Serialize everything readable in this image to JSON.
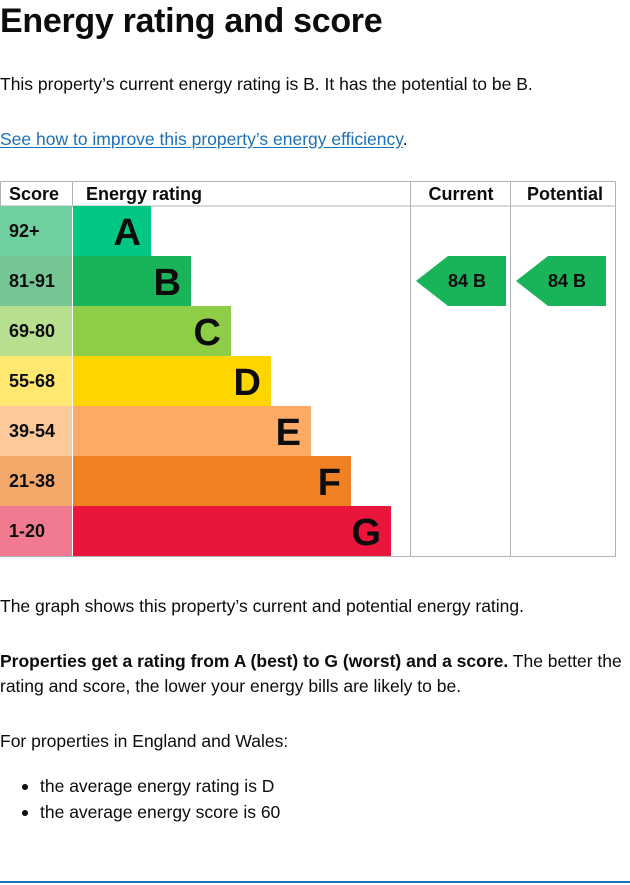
{
  "page": {
    "title": "Energy rating and score",
    "intro": "This property’s current energy rating is B. It has the potential to be B.",
    "improve_link": "See how to improve this property’s energy efficiency",
    "improve_link_suffix": ".",
    "graph_note": "The graph shows this property’s current and potential energy rating.",
    "rating_info_bold": "Properties get a rating from A (best) to G (worst) and a score.",
    "rating_info_rest": " The better the rating and score, the lower your energy bills are likely to be.",
    "england_wales": "For properties in England and Wales:",
    "averages": [
      "the average energy rating is D",
      "the average energy score is 60"
    ]
  },
  "chart_data": {
    "type": "table",
    "headers": {
      "score": "Score",
      "rating": "Energy rating",
      "current": "Current",
      "potential": "Potential"
    },
    "bands": [
      {
        "letter": "A",
        "score_range": "92+",
        "color": "#00c781",
        "score_color": "#6fcf9f",
        "length": 1
      },
      {
        "letter": "B",
        "score_range": "81-91",
        "color": "#19b459",
        "score_color": "#74c794",
        "length": 2
      },
      {
        "letter": "C",
        "score_range": "69-80",
        "color": "#8dce46",
        "score_color": "#b8df8f",
        "length": 3
      },
      {
        "letter": "D",
        "score_range": "55-68",
        "color": "#ffd500",
        "score_color": "#ffe770",
        "length": 4
      },
      {
        "letter": "E",
        "score_range": "39-54",
        "color": "#fcaa65",
        "score_color": "#fdc99b",
        "length": 5
      },
      {
        "letter": "F",
        "score_range": "21-38",
        "color": "#ef8023",
        "score_color": "#f4a96a",
        "length": 6
      },
      {
        "letter": "G",
        "score_range": "1-20",
        "color": "#e9153b",
        "score_color": "#f07a90",
        "length": 7
      }
    ],
    "current": {
      "score": 84,
      "band": "B",
      "label": "84  B",
      "color": "#19b459"
    },
    "potential": {
      "score": 84,
      "band": "B",
      "label": "84  B",
      "color": "#19b459"
    }
  }
}
